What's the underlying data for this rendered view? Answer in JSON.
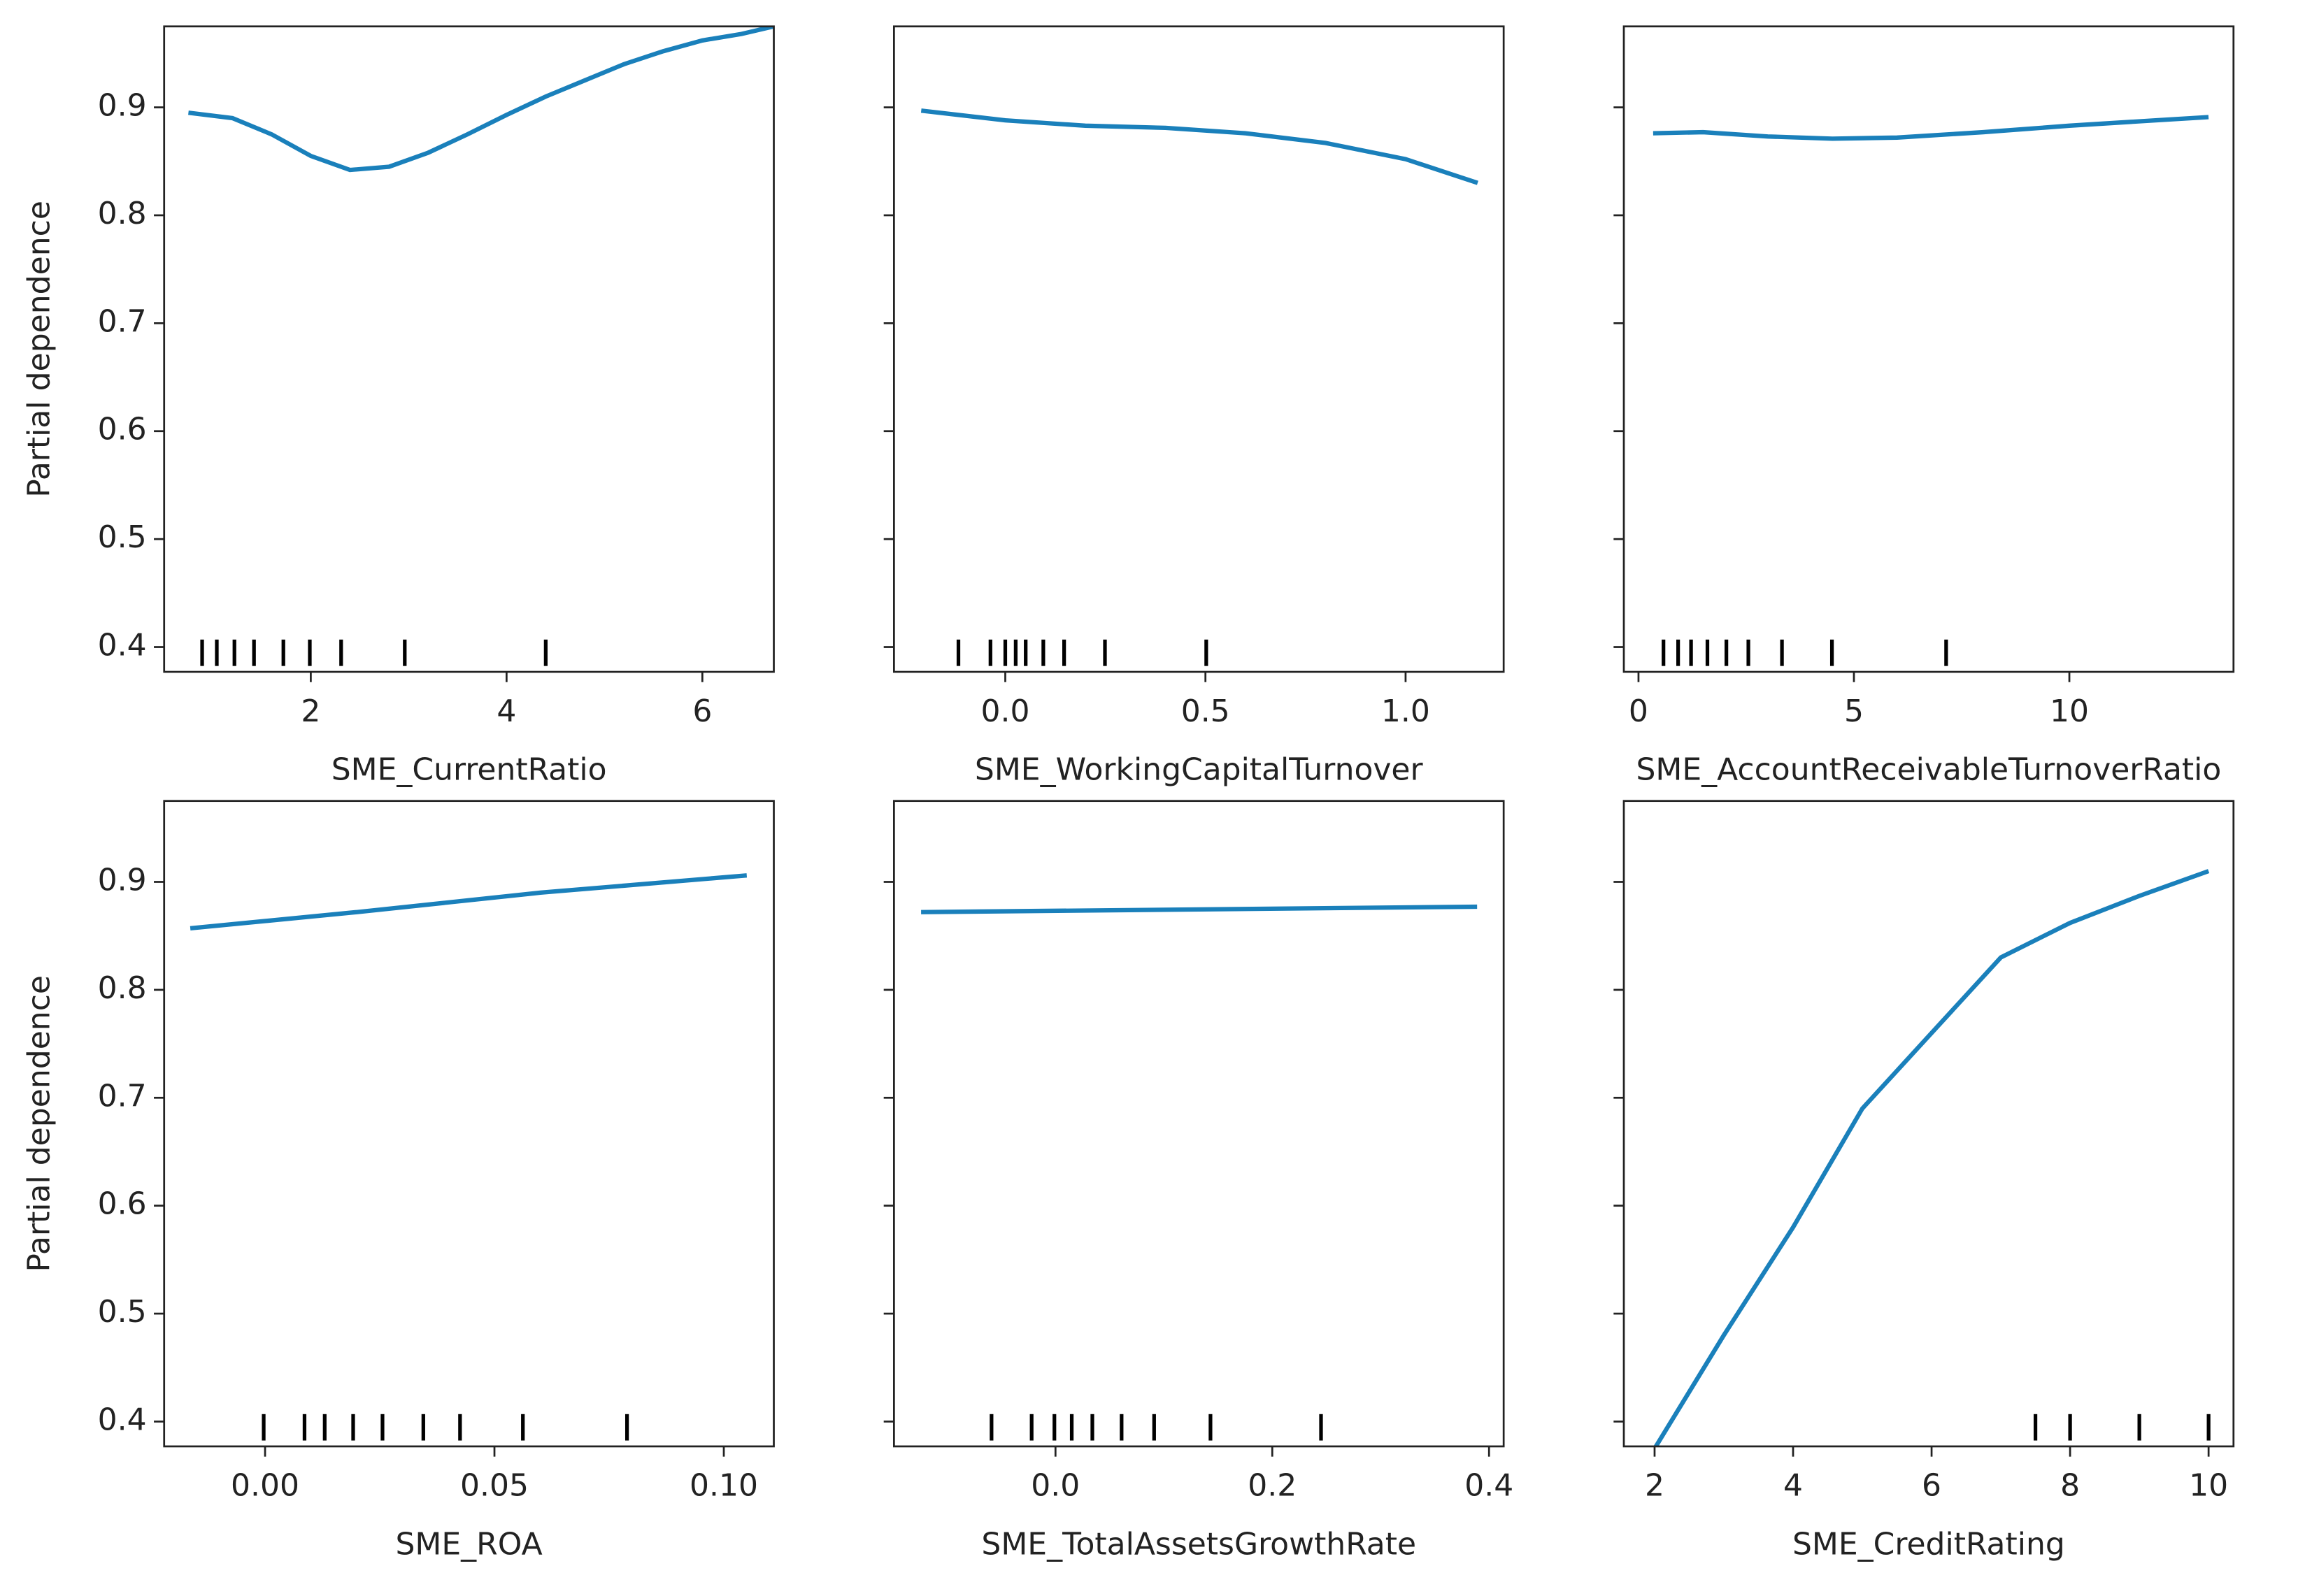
{
  "chart_data": [
    {
      "type": "line",
      "xlabel": "SME_CurrentRatio",
      "ylabel": "Partial dependence",
      "color": "#1a80bb",
      "x": [
        0.75,
        1.2,
        1.6,
        2.0,
        2.4,
        2.8,
        3.2,
        3.6,
        4.0,
        4.4,
        4.8,
        5.2,
        5.6,
        6.0,
        6.4,
        6.73
      ],
      "values": [
        0.895,
        0.89,
        0.875,
        0.855,
        0.842,
        0.845,
        0.858,
        0.875,
        0.893,
        0.91,
        0.925,
        0.94,
        0.952,
        0.962,
        0.968,
        0.975
      ],
      "deciles": [
        0.89,
        1.04,
        1.22,
        1.42,
        1.72,
        1.99,
        2.31,
        2.96,
        4.4
      ],
      "xlim": [
        0.502,
        6.73
      ],
      "xticks": [
        2,
        4,
        6
      ],
      "ylim": [
        0.377,
        0.975
      ],
      "yticks": [
        0.4,
        0.5,
        0.6,
        0.7,
        0.8,
        0.9
      ]
    },
    {
      "type": "line",
      "xlabel": "SME_WorkingCapitalTurnover",
      "color": "#1a80bb",
      "x": [
        -0.21,
        0.0,
        0.2,
        0.4,
        0.6,
        0.8,
        1.0,
        1.18
      ],
      "values": [
        0.897,
        0.888,
        0.883,
        0.881,
        0.876,
        0.867,
        0.852,
        0.83
      ],
      "deciles": [
        -0.117,
        -0.037,
        0.0,
        0.026,
        0.051,
        0.095,
        0.147,
        0.249,
        0.502
      ],
      "xlim": [
        -0.278,
        1.245
      ],
      "xticks": [
        {
          "value": 0,
          "label": "0.0"
        },
        0.5,
        {
          "value": 1,
          "label": "1.0"
        }
      ],
      "ylim": [
        0.377,
        0.975
      ],
      "yticks": [
        0.4,
        0.5,
        0.6,
        0.7,
        0.8,
        0.9
      ]
    },
    {
      "type": "line",
      "xlabel": "SME_AccountReceivableTurnoverRatio",
      "color": "#1a80bb",
      "x": [
        0.34,
        1.5,
        3,
        4.5,
        6,
        8,
        10,
        12,
        13.23
      ],
      "values": [
        0.876,
        0.877,
        0.873,
        0.871,
        0.872,
        0.877,
        0.883,
        0.888,
        0.891
      ],
      "deciles": [
        0.58,
        0.92,
        1.22,
        1.6,
        2.04,
        2.55,
        3.33,
        4.49,
        7.14
      ],
      "xlim": [
        -0.34,
        13.81
      ],
      "xticks": [
        0,
        5,
        10
      ],
      "ylim": [
        0.377,
        0.975
      ],
      "yticks": [
        0.4,
        0.5,
        0.6,
        0.7,
        0.8,
        0.9
      ]
    },
    {
      "type": "line",
      "xlabel": "SME_ROA",
      "ylabel": "Partial dependence",
      "color": "#1a80bb",
      "x": [
        -0.0163,
        0.02,
        0.06,
        0.105
      ],
      "values": [
        0.857,
        0.872,
        0.89,
        0.906
      ],
      "deciles": [
        -0.0003,
        0.0086,
        0.013,
        0.0192,
        0.0256,
        0.0345,
        0.0425,
        0.0562,
        0.0789
      ],
      "xlim": [
        -0.022,
        0.1109
      ],
      "xticks": [
        {
          "value": 0,
          "label": "0.00"
        },
        0.05,
        {
          "value": 0.1,
          "label": "0.10"
        }
      ],
      "ylim": [
        0.377,
        0.975
      ],
      "yticks": [
        0.4,
        0.5,
        0.6,
        0.7,
        0.8,
        0.9
      ]
    },
    {
      "type": "line",
      "xlabel": "SME_TotalAssetsGrowthRate",
      "color": "#1a80bb",
      "x": [
        -0.124,
        0.389
      ],
      "values": [
        0.872,
        0.877
      ],
      "deciles": [
        -0.059,
        -0.022,
        -0.001,
        0.015,
        0.034,
        0.061,
        0.091,
        0.143,
        0.245
      ],
      "xlim": [
        -0.149,
        0.4135
      ],
      "xticks": [
        {
          "value": 0,
          "label": "0.0"
        },
        0.2,
        0.4
      ],
      "ylim": [
        0.377,
        0.975
      ],
      "yticks": [
        0.4,
        0.5,
        0.6,
        0.7,
        0.8,
        0.9
      ]
    },
    {
      "type": "line",
      "xlabel": "SME_CreditRating",
      "color": "#1a80bb",
      "x": [
        2,
        3,
        4,
        5,
        6,
        7,
        8,
        9,
        10
      ],
      "values": [
        0.375,
        0.48,
        0.58,
        0.69,
        0.76,
        0.83,
        0.862,
        0.887,
        0.91
      ],
      "deciles": [
        7.5,
        8,
        9,
        10
      ],
      "xlim": [
        1.556,
        10.36
      ],
      "xticks": [
        2,
        4,
        6,
        8,
        10
      ],
      "ylim": [
        0.377,
        0.975
      ],
      "yticks": [
        0.4,
        0.5,
        0.6,
        0.7,
        0.8,
        0.9
      ]
    }
  ]
}
